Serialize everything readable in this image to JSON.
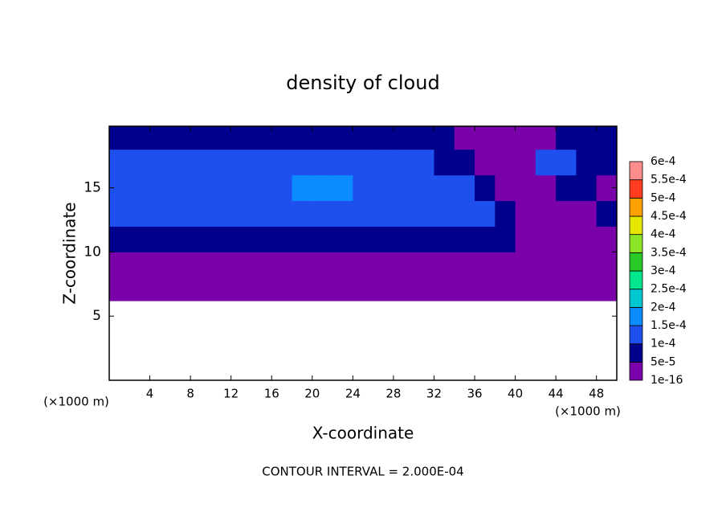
{
  "chart_data": {
    "type": "contour",
    "title": "density of cloud",
    "xlabel": "X-coordinate",
    "ylabel": "Z-coordinate",
    "x_unit": "(×1000 m)",
    "y_unit": "(×1000 m)",
    "note": "CONTOUR INTERVAL = 2.000E-04",
    "xlim": [
      0,
      50
    ],
    "ylim": [
      0,
      19.8
    ],
    "xticks": [
      4,
      8,
      12,
      16,
      20,
      24,
      28,
      32,
      36,
      40,
      44,
      48
    ],
    "yticks": [
      5,
      10,
      15
    ],
    "x_edges": [
      0,
      2,
      4,
      6,
      8,
      10,
      12,
      14,
      16,
      18,
      20,
      22,
      24,
      26,
      28,
      30,
      32,
      34,
      36,
      38,
      40,
      42,
      44,
      46,
      48,
      50
    ],
    "z_edges": [
      6.2,
      8,
      10,
      12,
      14,
      16,
      18,
      19.8
    ],
    "field": [
      [
        2e-05,
        2e-05,
        2e-05,
        2e-05,
        2e-05,
        2e-05,
        2e-05,
        2e-05,
        2e-05,
        2e-05,
        2e-05,
        2e-05,
        2e-05,
        2e-05,
        2e-05,
        2e-05,
        2e-05,
        2e-05,
        2e-05,
        2e-05,
        2e-05,
        2e-05,
        2e-05,
        2e-05,
        2e-05
      ],
      [
        2e-05,
        2e-05,
        2e-05,
        2e-05,
        2e-05,
        2e-05,
        2e-05,
        2e-05,
        2e-05,
        2e-05,
        2e-05,
        2e-05,
        2e-05,
        2e-05,
        2e-05,
        2e-05,
        2e-05,
        2e-05,
        2e-05,
        2e-05,
        2e-05,
        2e-05,
        2e-05,
        2e-05,
        2e-05
      ],
      [
        7e-05,
        7e-05,
        7e-05,
        7e-05,
        7e-05,
        7e-05,
        7e-05,
        7e-05,
        7e-05,
        7e-05,
        7e-05,
        7e-05,
        7e-05,
        7e-05,
        7e-05,
        7e-05,
        7e-05,
        7e-05,
        7e-05,
        7e-05,
        2e-05,
        2e-05,
        2e-05,
        2e-05,
        2e-05
      ],
      [
        0.00012,
        0.00012,
        0.00012,
        0.00012,
        0.00012,
        0.00012,
        0.00012,
        0.00012,
        0.00012,
        0.00012,
        0.00012,
        0.00012,
        0.00012,
        0.00012,
        0.00012,
        0.00012,
        0.00012,
        0.00012,
        0.00012,
        7e-05,
        2e-05,
        2e-05,
        2e-05,
        2e-05,
        7e-05
      ],
      [
        0.00013,
        0.00013,
        0.00013,
        0.00013,
        0.00013,
        0.00013,
        0.00013,
        0.00013,
        0.00013,
        0.00016,
        0.00016,
        0.00016,
        0.00013,
        0.00013,
        0.00013,
        0.00013,
        0.00013,
        0.00013,
        7e-05,
        2e-05,
        2e-05,
        2e-05,
        7e-05,
        7e-05,
        2e-05
      ],
      [
        0.00012,
        0.00012,
        0.00012,
        0.00012,
        0.00012,
        0.00012,
        0.00012,
        0.00012,
        0.00012,
        0.00012,
        0.00012,
        0.00012,
        0.00012,
        0.00012,
        0.00012,
        0.00012,
        7e-05,
        7e-05,
        2e-05,
        2e-05,
        2e-05,
        0.00012,
        0.00012,
        7e-05,
        7e-05
      ],
      [
        7e-05,
        7e-05,
        7e-05,
        7e-05,
        7e-05,
        7e-05,
        7e-05,
        7e-05,
        7e-05,
        7e-05,
        7e-05,
        7e-05,
        7e-05,
        7e-05,
        7e-05,
        7e-05,
        7e-05,
        2e-05,
        2e-05,
        2e-05,
        2e-05,
        2e-05,
        7e-05,
        7e-05,
        7e-05
      ]
    ],
    "levels": [
      {
        "value": 1e-16,
        "label": "1e-16"
      },
      {
        "value": 5e-05,
        "label": "5e-5"
      },
      {
        "value": 0.0001,
        "label": "1e-4"
      },
      {
        "value": 0.00015,
        "label": "1.5e-4"
      },
      {
        "value": 0.0002,
        "label": "2e-4"
      },
      {
        "value": 0.00025,
        "label": "2.5e-4"
      },
      {
        "value": 0.0003,
        "label": "3e-4"
      },
      {
        "value": 0.00035,
        "label": "3.5e-4"
      },
      {
        "value": 0.0004,
        "label": "4e-4"
      },
      {
        "value": 0.00045,
        "label": "4.5e-4"
      },
      {
        "value": 0.0005,
        "label": "5e-4"
      },
      {
        "value": 0.00055,
        "label": "5.5e-4"
      },
      {
        "value": 0.0006,
        "label": "6e-4"
      }
    ],
    "colors": [
      "#7a00aa",
      "#00008c",
      "#1e50f0",
      "#0a8cff",
      "#00c8d2",
      "#00e68c",
      "#28c828",
      "#8ce628",
      "#e6e600",
      "#ffa000",
      "#ff3c1e",
      "#ff8c8c"
    ]
  }
}
